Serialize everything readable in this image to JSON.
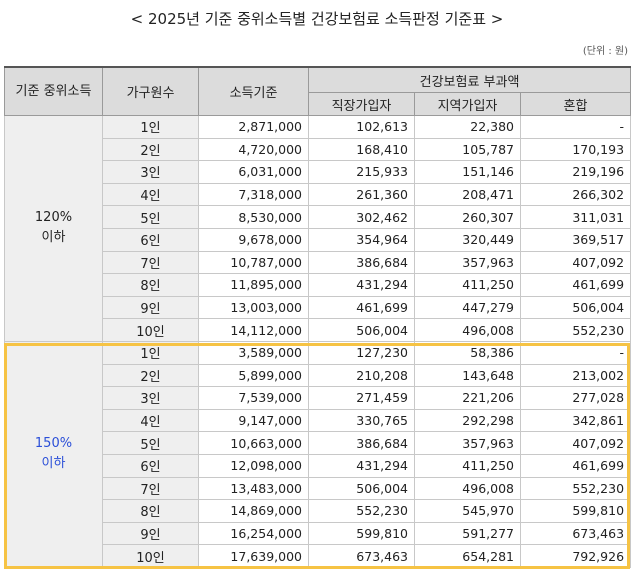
{
  "title": "< 2025년 기준 중위소득별 건강보험료 소득판정 기준표 >",
  "unit": "(단위 : 원)",
  "headers": {
    "median": "기준 중위소득",
    "household": "가구원수",
    "income": "소득기준",
    "premium": "건강보험료 부과액",
    "employee": "직장가입자",
    "regional": "지역가입자",
    "mixed": "혼합"
  },
  "groups": [
    {
      "label_line1": "120%",
      "label_line2": "이하",
      "rows": [
        {
          "hh": "1인",
          "income": "2,871,000",
          "employee": "102,613",
          "regional": "22,380",
          "mixed": "-"
        },
        {
          "hh": "2인",
          "income": "4,720,000",
          "employee": "168,410",
          "regional": "105,787",
          "mixed": "170,193"
        },
        {
          "hh": "3인",
          "income": "6,031,000",
          "employee": "215,933",
          "regional": "151,146",
          "mixed": "219,196"
        },
        {
          "hh": "4인",
          "income": "7,318,000",
          "employee": "261,360",
          "regional": "208,471",
          "mixed": "266,302"
        },
        {
          "hh": "5인",
          "income": "8,530,000",
          "employee": "302,462",
          "regional": "260,307",
          "mixed": "311,031"
        },
        {
          "hh": "6인",
          "income": "9,678,000",
          "employee": "354,964",
          "regional": "320,449",
          "mixed": "369,517"
        },
        {
          "hh": "7인",
          "income": "10,787,000",
          "employee": "386,684",
          "regional": "357,963",
          "mixed": "407,092"
        },
        {
          "hh": "8인",
          "income": "11,895,000",
          "employee": "431,294",
          "regional": "411,250",
          "mixed": "461,699"
        },
        {
          "hh": "9인",
          "income": "13,003,000",
          "employee": "461,699",
          "regional": "447,279",
          "mixed": "506,004"
        },
        {
          "hh": "10인",
          "income": "14,112,000",
          "employee": "506,004",
          "regional": "496,008",
          "mixed": "552,230"
        }
      ]
    },
    {
      "label_line1": "150%",
      "label_line2": "이하",
      "rows": [
        {
          "hh": "1인",
          "income": "3,589,000",
          "employee": "127,230",
          "regional": "58,386",
          "mixed": "-"
        },
        {
          "hh": "2인",
          "income": "5,899,000",
          "employee": "210,208",
          "regional": "143,648",
          "mixed": "213,002"
        },
        {
          "hh": "3인",
          "income": "7,539,000",
          "employee": "271,459",
          "regional": "221,206",
          "mixed": "277,028"
        },
        {
          "hh": "4인",
          "income": "9,147,000",
          "employee": "330,765",
          "regional": "292,298",
          "mixed": "342,861"
        },
        {
          "hh": "5인",
          "income": "10,663,000",
          "employee": "386,684",
          "regional": "357,963",
          "mixed": "407,092"
        },
        {
          "hh": "6인",
          "income": "12,098,000",
          "employee": "431,294",
          "regional": "411,250",
          "mixed": "461,699"
        },
        {
          "hh": "7인",
          "income": "13,483,000",
          "employee": "506,004",
          "regional": "496,008",
          "mixed": "552,230"
        },
        {
          "hh": "8인",
          "income": "14,869,000",
          "employee": "552,230",
          "regional": "545,970",
          "mixed": "599,810"
        },
        {
          "hh": "9인",
          "income": "16,254,000",
          "employee": "599,810",
          "regional": "591,277",
          "mixed": "673,463"
        },
        {
          "hh": "10인",
          "income": "17,639,000",
          "employee": "673,463",
          "regional": "654,281",
          "mixed": "792,926"
        }
      ]
    }
  ],
  "colors": {
    "highlight": "#f6c344",
    "blue_label": "#2b4fd8",
    "header_bg": "#dcdcdc",
    "group_bg": "#efefef"
  }
}
